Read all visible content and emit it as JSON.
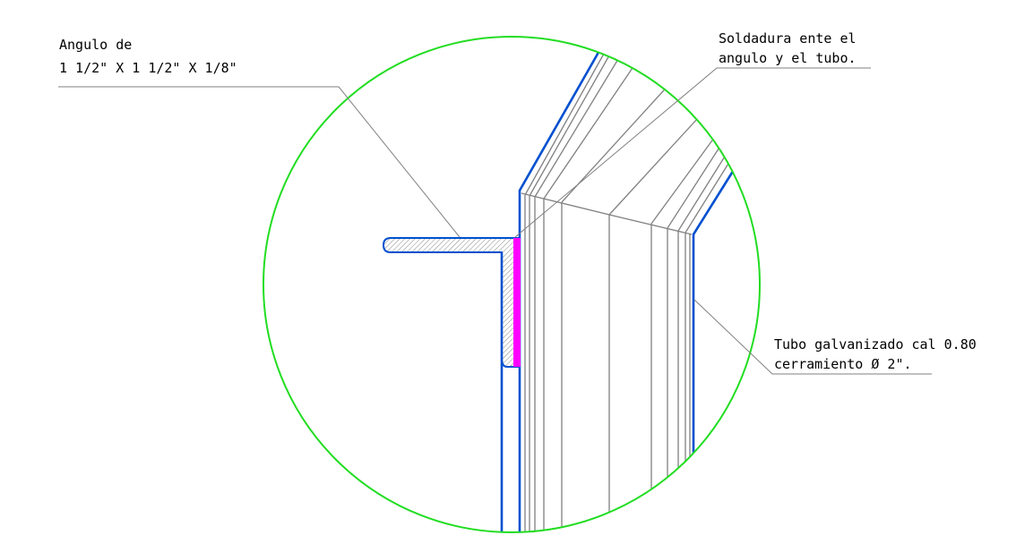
{
  "labels": [
    {
      "lines": [
        "Angulo de",
        "1 1/2\" X 1 1/2\" X 1/8\""
      ]
    },
    {
      "lines": [
        "Soldadura ente el",
        "angulo y el tubo."
      ]
    },
    {
      "lines": [
        "Tubo galvanizado cal 0.80",
        "cerramiento Ø 2\"."
      ]
    }
  ]
}
